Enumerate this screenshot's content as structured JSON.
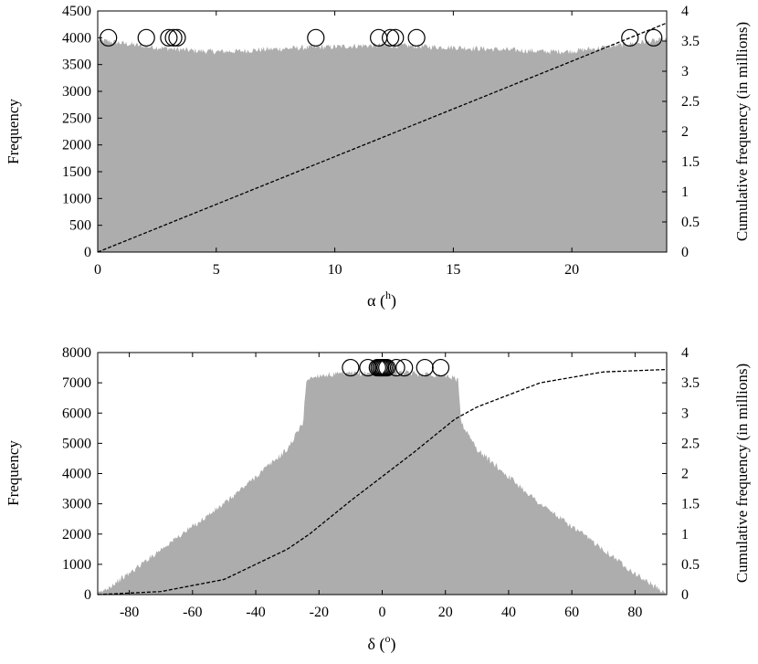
{
  "chart_data": [
    {
      "type": "bar",
      "ylabel": "Frequency",
      "y2label": "Cumulative frequency (in millions)",
      "xlabel_main": "α (",
      "xlabel_sup": "h",
      "xlabel_close": ")",
      "xlim": [
        0,
        24
      ],
      "ylim": [
        0,
        4500
      ],
      "y2lim": [
        0,
        4
      ],
      "xticks": [
        0,
        5,
        10,
        15,
        20
      ],
      "yticks": [
        0,
        500,
        1000,
        1500,
        2000,
        2500,
        3000,
        3500,
        4000,
        4500
      ],
      "y2ticks": [
        "0",
        "0.5",
        "1",
        "1.5",
        "2",
        "2.5",
        "3",
        "3.5",
        "4"
      ],
      "histogram_profile": {
        "x": [
          0,
          1,
          2,
          3,
          4,
          5,
          6,
          7,
          8,
          9,
          10,
          11,
          12,
          13,
          14,
          15,
          16,
          17,
          18,
          19,
          20,
          21,
          22,
          23,
          24
        ],
        "frequency": [
          3960,
          3900,
          3840,
          3800,
          3760,
          3740,
          3750,
          3780,
          3800,
          3820,
          3830,
          3850,
          3860,
          3850,
          3830,
          3820,
          3800,
          3780,
          3760,
          3740,
          3750,
          3800,
          3860,
          3920,
          3960
        ]
      },
      "cumulative": {
        "x": [
          0,
          24
        ],
        "value_millions": [
          0,
          3.8
        ]
      },
      "markers": {
        "x": [
          0.45,
          2.05,
          3.0,
          3.2,
          3.35,
          9.2,
          11.85,
          12.35,
          12.55,
          13.45,
          22.45,
          23.45
        ],
        "y": 4000
      }
    },
    {
      "type": "bar",
      "ylabel": "Frequency",
      "y2label": "Cumulative frequency (in millions)",
      "xlabel_main": "δ (",
      "xlabel_sup": "o",
      "xlabel_close": ")",
      "xlim": [
        -90,
        90
      ],
      "ylim": [
        0,
        8000
      ],
      "y2lim": [
        0,
        4
      ],
      "xticks": [
        -80,
        -60,
        -40,
        -20,
        0,
        20,
        40,
        60,
        80
      ],
      "yticks": [
        0,
        1000,
        2000,
        3000,
        4000,
        5000,
        6000,
        7000,
        8000
      ],
      "y2ticks": [
        "0",
        "0.5",
        "1",
        "1.5",
        "2",
        "2.5",
        "3",
        "3.5",
        "4"
      ],
      "histogram_profile": {
        "x": [
          -90,
          -80,
          -70,
          -60,
          -50,
          -40,
          -30,
          -25,
          -24,
          -20,
          -10,
          0,
          10,
          20,
          24,
          25,
          30,
          40,
          50,
          60,
          70,
          80,
          90
        ],
        "frequency": [
          0,
          700,
          1500,
          2250,
          3000,
          3900,
          4800,
          5700,
          7100,
          7250,
          7300,
          7350,
          7300,
          7250,
          7100,
          5700,
          4800,
          3900,
          3000,
          2250,
          1500,
          700,
          0
        ]
      },
      "cumulative": {
        "x": [
          -90,
          -70,
          -50,
          -30,
          -23,
          -10,
          0,
          10,
          23,
          30,
          50,
          70,
          90
        ],
        "value_millions": [
          0,
          0.05,
          0.25,
          0.75,
          1.0,
          1.55,
          1.95,
          2.35,
          2.9,
          3.1,
          3.5,
          3.68,
          3.72
        ]
      },
      "markers": {
        "x": [
          -10,
          -4.5,
          -1.5,
          -1,
          -0.5,
          0,
          0.5,
          1,
          1.5,
          4.5,
          7,
          13.5,
          18.5
        ],
        "y": 7500
      }
    }
  ]
}
